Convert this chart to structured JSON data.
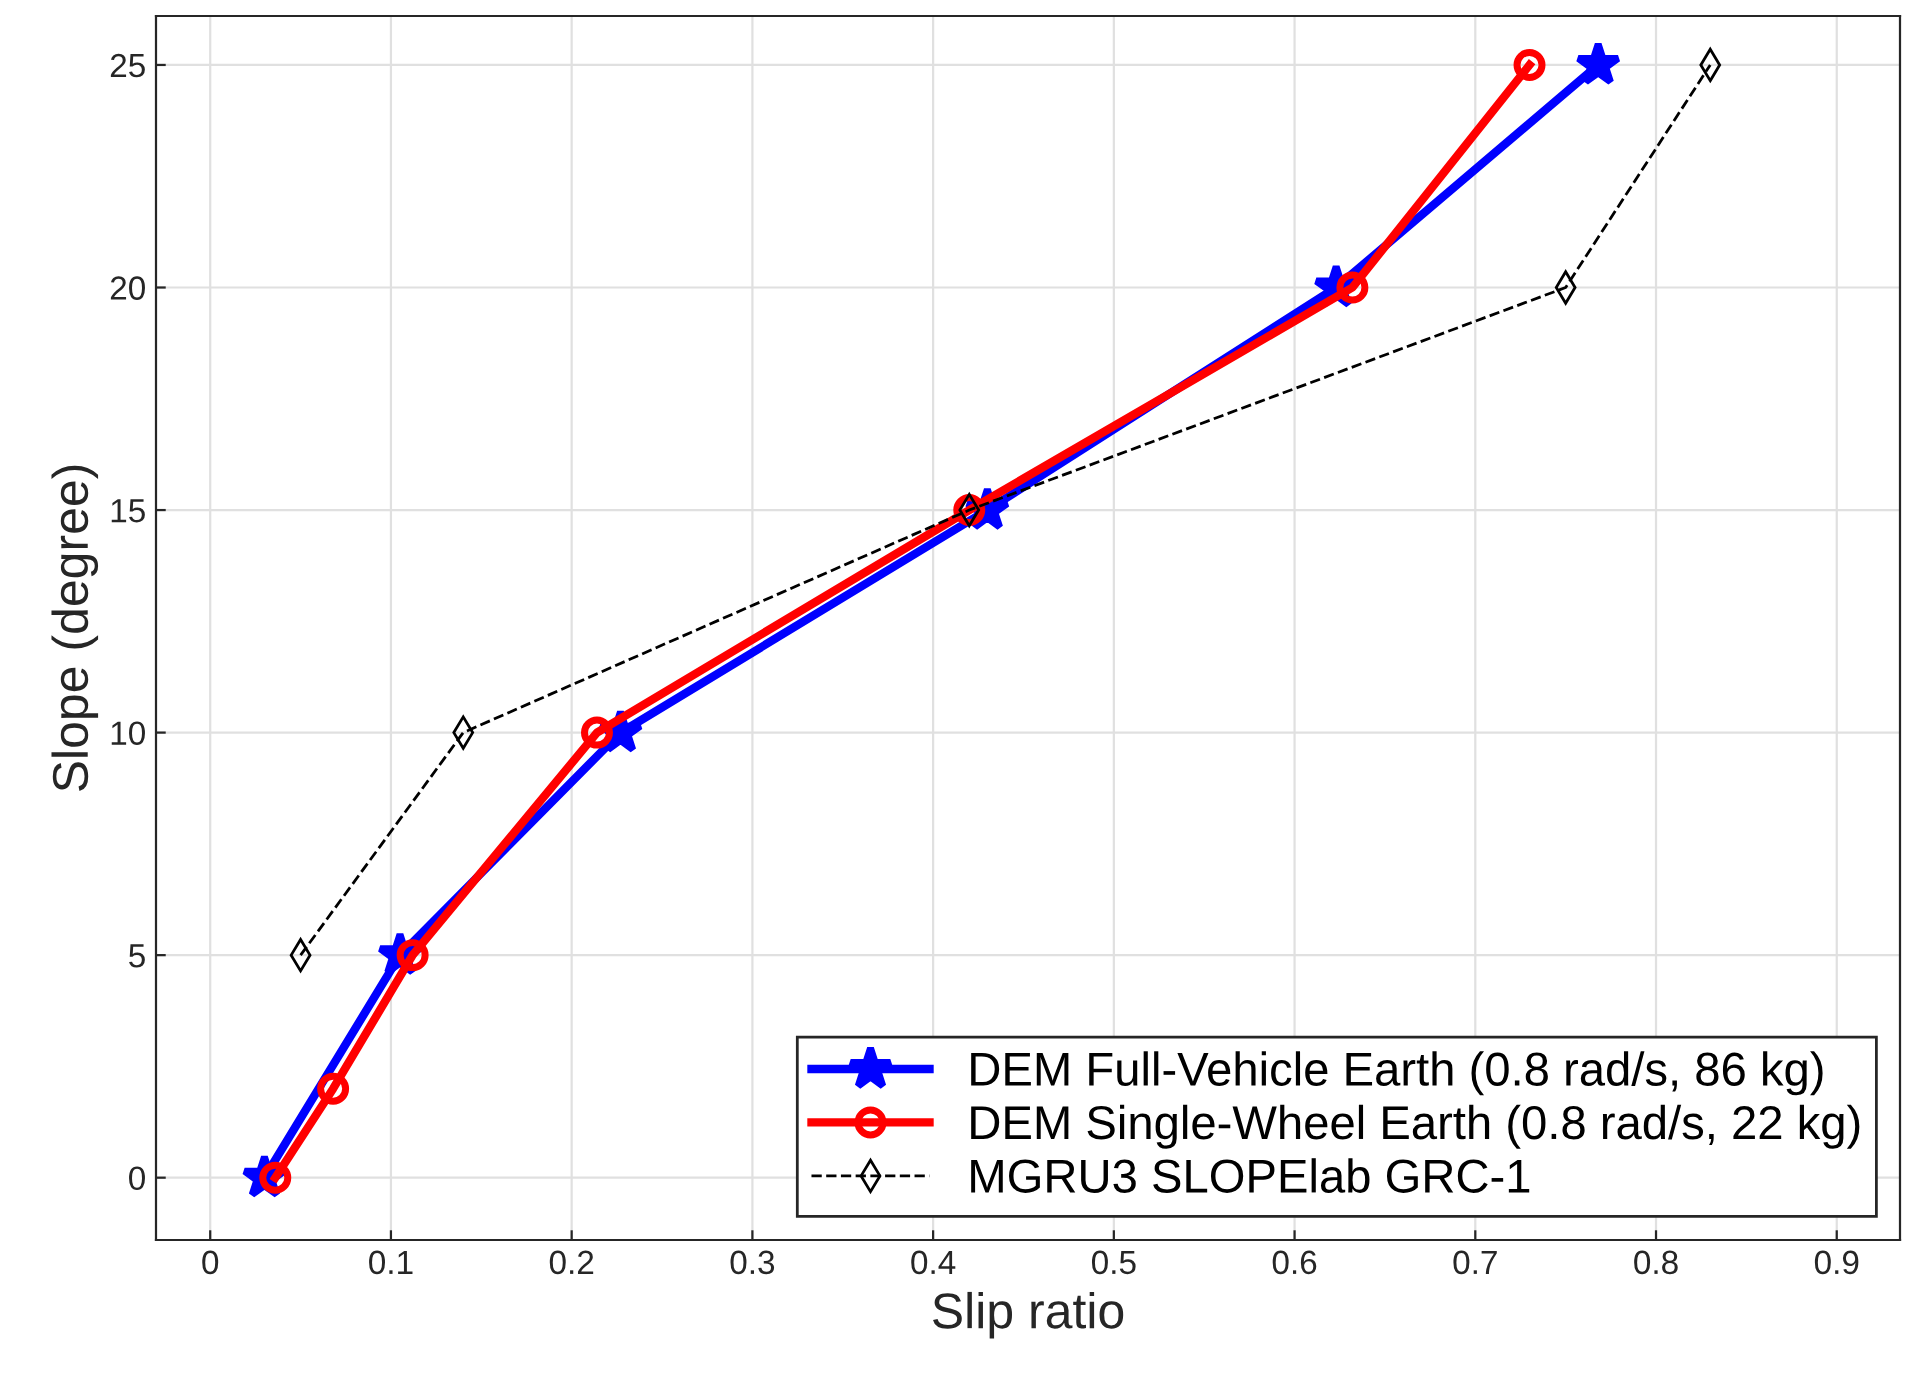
{
  "chart_data": {
    "type": "line",
    "xlabel": "Slip ratio",
    "ylabel": "Slope (degree)",
    "xlim": [
      -0.03,
      0.935
    ],
    "xticks": [
      0,
      0.1,
      0.2,
      0.3,
      0.4,
      0.5,
      0.6,
      0.7,
      0.8,
      0.9
    ],
    "ylim": [
      -1.4,
      26.1
    ],
    "yticks": [
      0,
      5,
      10,
      15,
      20,
      25
    ],
    "grid": true,
    "legend": "bottom right",
    "series": [
      {
        "name": "DEM Full-Vehicle Earth (0.8 rad/s, 86 kg)",
        "color": "#0000ff",
        "marker": "star",
        "line_style": "solid",
        "x": [
          0.03,
          0.105,
          0.227,
          0.43,
          0.623,
          0.768
        ],
        "values": [
          0,
          5,
          10,
          15,
          20,
          25
        ]
      },
      {
        "name": "DEM Single-Wheel Earth (0.8 rad/s, 22 kg)",
        "color": "#ff0000",
        "marker": "circle",
        "line_style": "solid",
        "x": [
          0.036,
          0.068,
          0.112,
          0.214,
          0.42,
          0.632,
          0.73
        ],
        "values": [
          0,
          2,
          5,
          10,
          15,
          20,
          25
        ]
      },
      {
        "name": "MGRU3 SLOPElab GRC-1",
        "color": "#000000",
        "marker": "diamond",
        "line_style": "dashed",
        "x": [
          0.05,
          0.14,
          0.42,
          0.75,
          0.83
        ],
        "values": [
          5,
          10,
          15,
          20,
          25
        ]
      }
    ]
  }
}
